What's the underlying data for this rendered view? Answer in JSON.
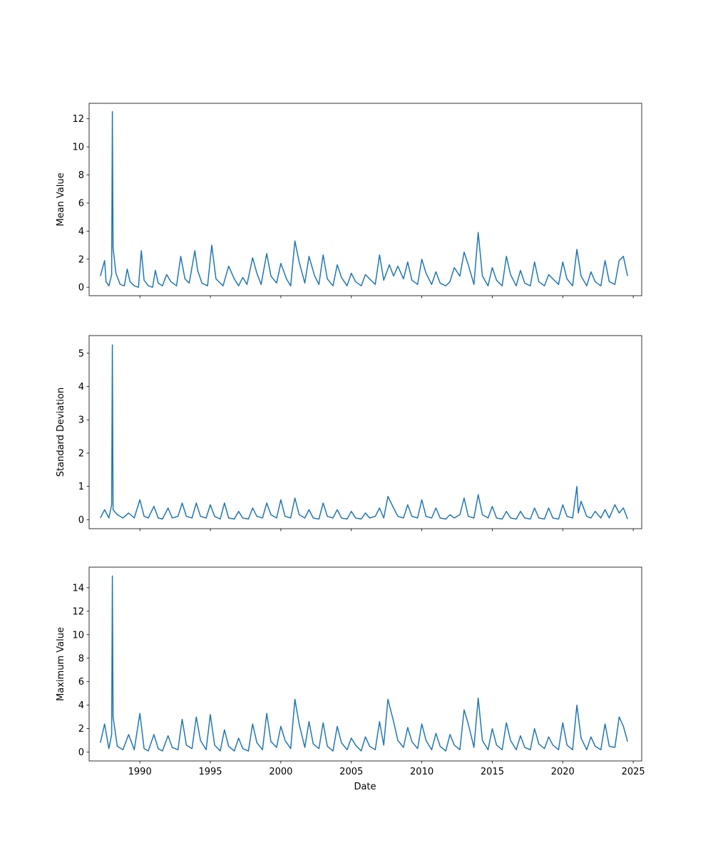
{
  "figure": {
    "xlabel": "Date"
  },
  "colors": {
    "line": "#1f77b4",
    "axes": "#000000",
    "background": "#ffffff"
  },
  "chart_data": [
    {
      "type": "line",
      "title": "",
      "xlabel": "",
      "ylabel": "Mean Value",
      "grid": false,
      "x_range": [
        1986.4,
        2025.6
      ],
      "ylim": [
        -0.6,
        13.1
      ],
      "x_ticks": [
        1990,
        1995,
        2000,
        2005,
        2010,
        2015,
        2020,
        2025
      ],
      "x_tick_labels_visible": false,
      "y_ticks": [
        0,
        2,
        4,
        6,
        8,
        10,
        12
      ],
      "series": [
        {
          "x": [
            1987.2,
            1987.5,
            1987.55,
            1987.6,
            1987.8,
            1988.0,
            1988.05,
            1988.1,
            1988.3,
            1988.6,
            1988.9,
            1989.1,
            1989.3,
            1989.6,
            1989.9,
            1990.1,
            1990.3,
            1990.6,
            1990.9,
            1991.1,
            1991.3,
            1991.6,
            1991.9,
            1992.2,
            1992.6,
            1992.9,
            1993.2,
            1993.5,
            1993.9,
            1994.1,
            1994.4,
            1994.8,
            1995.1,
            1995.4,
            1995.9,
            1996.3,
            1996.7,
            1997.0,
            1997.3,
            1997.6,
            1998.0,
            1998.3,
            1998.6,
            1999.0,
            1999.3,
            1999.7,
            2000.0,
            2000.4,
            2000.7,
            2001.0,
            2001.3,
            2001.7,
            2002.0,
            2002.4,
            2002.7,
            2003.0,
            2003.3,
            2003.7,
            2004.0,
            2004.3,
            2004.7,
            2005.0,
            2005.3,
            2005.7,
            2006.0,
            2006.3,
            2006.7,
            2007.0,
            2007.3,
            2007.7,
            2008.0,
            2008.3,
            2008.7,
            2009.0,
            2009.3,
            2009.7,
            2010.0,
            2010.3,
            2010.7,
            2011.0,
            2011.3,
            2011.7,
            2012.0,
            2012.3,
            2012.7,
            2013.0,
            2013.3,
            2013.7,
            2014.0,
            2014.3,
            2014.7,
            2015.0,
            2015.3,
            2015.7,
            2016.0,
            2016.3,
            2016.7,
            2017.0,
            2017.3,
            2017.7,
            2018.0,
            2018.3,
            2018.7,
            2019.0,
            2019.3,
            2019.7,
            2020.0,
            2020.3,
            2020.7,
            2021.0,
            2021.3,
            2021.7,
            2022.0,
            2022.3,
            2022.7,
            2023.0,
            2023.3,
            2023.7,
            2024.0,
            2024.3,
            2024.6
          ],
          "y": [
            0.8,
            1.9,
            1.2,
            0.4,
            0.1,
            0.9,
            12.5,
            2.8,
            1.0,
            0.2,
            0.1,
            1.3,
            0.4,
            0.1,
            0.0,
            2.6,
            0.5,
            0.1,
            0.0,
            1.2,
            0.3,
            0.1,
            0.9,
            0.4,
            0.1,
            2.2,
            0.6,
            0.3,
            2.6,
            1.2,
            0.3,
            0.1,
            3.0,
            0.6,
            0.1,
            1.5,
            0.6,
            0.1,
            0.7,
            0.2,
            2.1,
            1.0,
            0.2,
            2.4,
            0.8,
            0.3,
            1.7,
            0.6,
            0.1,
            3.3,
            1.8,
            0.3,
            2.2,
            0.8,
            0.2,
            2.3,
            0.6,
            0.1,
            1.6,
            0.7,
            0.1,
            1.0,
            0.4,
            0.1,
            0.9,
            0.6,
            0.2,
            2.3,
            0.5,
            1.6,
            0.8,
            1.5,
            0.6,
            1.8,
            0.5,
            0.2,
            2.0,
            1.0,
            0.2,
            1.1,
            0.3,
            0.1,
            0.4,
            1.4,
            0.8,
            2.5,
            1.6,
            0.2,
            3.9,
            0.8,
            0.1,
            1.4,
            0.5,
            0.1,
            2.2,
            0.9,
            0.1,
            1.2,
            0.3,
            0.1,
            1.8,
            0.4,
            0.1,
            0.9,
            0.6,
            0.2,
            1.8,
            0.6,
            0.1,
            2.7,
            0.8,
            0.1,
            1.1,
            0.4,
            0.1,
            1.9,
            0.4,
            0.2,
            1.9,
            2.2,
            0.8
          ]
        }
      ]
    },
    {
      "type": "line",
      "title": "",
      "xlabel": "",
      "ylabel": "Standard Deviation",
      "grid": false,
      "x_range": [
        1986.4,
        2025.6
      ],
      "ylim": [
        -0.27,
        5.53
      ],
      "x_ticks": [
        1990,
        1995,
        2000,
        2005,
        2010,
        2015,
        2020,
        2025
      ],
      "x_tick_labels_visible": false,
      "y_ticks": [
        0,
        1,
        2,
        3,
        4,
        5
      ],
      "series": [
        {
          "x": [
            1987.2,
            1987.5,
            1987.8,
            1988.0,
            1988.05,
            1988.1,
            1988.4,
            1988.8,
            1989.2,
            1989.6,
            1990.0,
            1990.3,
            1990.6,
            1991.0,
            1991.3,
            1991.6,
            1992.0,
            1992.3,
            1992.7,
            1993.0,
            1993.3,
            1993.7,
            1994.0,
            1994.3,
            1994.7,
            1995.0,
            1995.3,
            1995.7,
            1996.0,
            1996.3,
            1996.7,
            1997.0,
            1997.3,
            1997.7,
            1998.0,
            1998.3,
            1998.7,
            1999.0,
            1999.3,
            1999.7,
            2000.0,
            2000.3,
            2000.7,
            2001.0,
            2001.3,
            2001.7,
            2002.0,
            2002.3,
            2002.7,
            2003.0,
            2003.3,
            2003.7,
            2004.0,
            2004.3,
            2004.7,
            2005.0,
            2005.3,
            2005.7,
            2006.0,
            2006.3,
            2006.7,
            2007.0,
            2007.3,
            2007.6,
            2008.0,
            2008.3,
            2008.7,
            2009.0,
            2009.3,
            2009.7,
            2010.0,
            2010.3,
            2010.7,
            2011.0,
            2011.3,
            2011.7,
            2012.0,
            2012.3,
            2012.7,
            2013.0,
            2013.3,
            2013.7,
            2014.0,
            2014.3,
            2014.7,
            2015.0,
            2015.3,
            2015.7,
            2016.0,
            2016.3,
            2016.7,
            2017.0,
            2017.3,
            2017.7,
            2018.0,
            2018.3,
            2018.7,
            2019.0,
            2019.3,
            2019.7,
            2020.0,
            2020.3,
            2020.7,
            2021.0,
            2021.1,
            2021.3,
            2021.7,
            2022.0,
            2022.3,
            2022.7,
            2023.0,
            2023.3,
            2023.7,
            2024.0,
            2024.3,
            2024.6
          ],
          "y": [
            0.05,
            0.3,
            0.05,
            0.45,
            5.25,
            0.3,
            0.15,
            0.05,
            0.2,
            0.05,
            0.6,
            0.1,
            0.05,
            0.4,
            0.05,
            0.02,
            0.35,
            0.05,
            0.1,
            0.5,
            0.1,
            0.05,
            0.5,
            0.1,
            0.05,
            0.45,
            0.1,
            0.02,
            0.5,
            0.05,
            0.02,
            0.25,
            0.05,
            0.02,
            0.35,
            0.1,
            0.05,
            0.5,
            0.15,
            0.05,
            0.6,
            0.1,
            0.05,
            0.65,
            0.15,
            0.05,
            0.3,
            0.05,
            0.02,
            0.5,
            0.1,
            0.05,
            0.3,
            0.05,
            0.02,
            0.25,
            0.05,
            0.02,
            0.2,
            0.05,
            0.1,
            0.35,
            0.05,
            0.7,
            0.35,
            0.1,
            0.05,
            0.45,
            0.1,
            0.05,
            0.6,
            0.1,
            0.05,
            0.35,
            0.05,
            0.02,
            0.15,
            0.05,
            0.15,
            0.65,
            0.1,
            0.05,
            0.75,
            0.15,
            0.05,
            0.4,
            0.05,
            0.02,
            0.25,
            0.05,
            0.02,
            0.25,
            0.05,
            0.02,
            0.35,
            0.05,
            0.02,
            0.35,
            0.05,
            0.02,
            0.45,
            0.1,
            0.05,
            1.0,
            0.2,
            0.55,
            0.1,
            0.05,
            0.25,
            0.05,
            0.3,
            0.05,
            0.45,
            0.2,
            0.35,
            0.02
          ]
        }
      ]
    },
    {
      "type": "line",
      "title": "",
      "xlabel": "Date",
      "ylabel": "Maximum Value",
      "grid": false,
      "x_range": [
        1986.4,
        2025.6
      ],
      "ylim": [
        -0.75,
        15.75
      ],
      "x_ticks": [
        1990,
        1995,
        2000,
        2005,
        2010,
        2015,
        2020,
        2025
      ],
      "x_tick_labels": [
        "1990",
        "1995",
        "2000",
        "2005",
        "2010",
        "2015",
        "2020",
        "2025"
      ],
      "x_tick_labels_visible": true,
      "y_ticks": [
        0,
        2,
        4,
        6,
        8,
        10,
        12,
        14
      ],
      "series": [
        {
          "x": [
            1987.2,
            1987.5,
            1987.8,
            1988.0,
            1988.05,
            1988.1,
            1988.4,
            1988.8,
            1989.2,
            1989.6,
            1990.0,
            1990.3,
            1990.6,
            1991.0,
            1991.3,
            1991.6,
            1992.0,
            1992.3,
            1992.7,
            1993.0,
            1993.3,
            1993.7,
            1994.0,
            1994.3,
            1994.7,
            1995.0,
            1995.3,
            1995.7,
            1996.0,
            1996.3,
            1996.7,
            1997.0,
            1997.3,
            1997.7,
            1998.0,
            1998.3,
            1998.7,
            1999.0,
            1999.3,
            1999.7,
            2000.0,
            2000.3,
            2000.7,
            2001.0,
            2001.3,
            2001.7,
            2002.0,
            2002.3,
            2002.7,
            2003.0,
            2003.3,
            2003.7,
            2004.0,
            2004.3,
            2004.7,
            2005.0,
            2005.3,
            2005.7,
            2006.0,
            2006.3,
            2006.7,
            2007.0,
            2007.3,
            2007.6,
            2008.0,
            2008.3,
            2008.7,
            2009.0,
            2009.3,
            2009.7,
            2010.0,
            2010.3,
            2010.7,
            2011.0,
            2011.3,
            2011.7,
            2012.0,
            2012.3,
            2012.7,
            2013.0,
            2013.3,
            2013.7,
            2014.0,
            2014.3,
            2014.7,
            2015.0,
            2015.3,
            2015.7,
            2016.0,
            2016.3,
            2016.7,
            2017.0,
            2017.3,
            2017.7,
            2018.0,
            2018.3,
            2018.7,
            2019.0,
            2019.3,
            2019.7,
            2020.0,
            2020.3,
            2020.7,
            2021.0,
            2021.3,
            2021.7,
            2022.0,
            2022.3,
            2022.7,
            2023.0,
            2023.3,
            2023.7,
            2024.0,
            2024.3,
            2024.6
          ],
          "y": [
            0.8,
            2.4,
            0.3,
            1.5,
            15.0,
            3.0,
            0.5,
            0.2,
            1.5,
            0.2,
            3.3,
            0.3,
            0.1,
            1.5,
            0.3,
            0.1,
            1.4,
            0.4,
            0.2,
            2.8,
            0.6,
            0.3,
            3.0,
            1.0,
            0.2,
            3.2,
            0.6,
            0.1,
            1.9,
            0.5,
            0.1,
            1.2,
            0.3,
            0.1,
            2.4,
            0.8,
            0.2,
            3.3,
            0.9,
            0.4,
            2.2,
            1.0,
            0.3,
            4.5,
            2.4,
            0.4,
            2.6,
            0.7,
            0.3,
            2.5,
            0.5,
            0.1,
            2.2,
            0.8,
            0.2,
            1.2,
            0.6,
            0.1,
            1.3,
            0.5,
            0.2,
            2.6,
            0.6,
            4.5,
            2.6,
            1.0,
            0.4,
            2.1,
            0.9,
            0.3,
            2.4,
            1.0,
            0.2,
            1.6,
            0.5,
            0.1,
            1.5,
            0.6,
            0.2,
            3.6,
            2.4,
            0.4,
            4.6,
            1.0,
            0.2,
            2.0,
            0.6,
            0.2,
            2.5,
            1.0,
            0.2,
            1.4,
            0.4,
            0.2,
            2.0,
            0.7,
            0.3,
            1.3,
            0.6,
            0.2,
            2.5,
            0.6,
            0.2,
            4.0,
            1.2,
            0.2,
            1.3,
            0.5,
            0.2,
            2.4,
            0.5,
            0.4,
            3.0,
            2.2,
            0.9
          ]
        }
      ]
    }
  ]
}
